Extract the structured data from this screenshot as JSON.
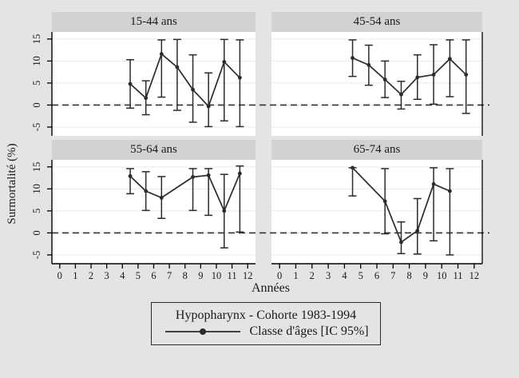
{
  "figure": {
    "ylabel": "Surmortalité (%)",
    "xlabel": "Années",
    "colors": {
      "background": "#e4e4e4",
      "panel_header": "#d2d2d2",
      "plot_bg": "#ffffff",
      "grid": "#eaeaea",
      "line": "#2b2b2b",
      "axis": "#000000",
      "zero_line": "#333333",
      "text": "#1a1a1a"
    }
  },
  "chart_data": {
    "type": "line",
    "layout": "2x2-small-multiples",
    "xlabel": "Années",
    "ylabel": "Surmortalité (%)",
    "x_ticks": [
      0,
      1,
      2,
      3,
      4,
      5,
      6,
      7,
      8,
      9,
      10,
      11,
      12
    ],
    "y_ticks": [
      -5,
      0,
      5,
      10,
      15
    ],
    "x_range": [
      -0.5,
      12.5
    ],
    "y_range": [
      -7,
      16.6
    ],
    "zero_line": true,
    "error_bars": "IC 95%",
    "panels": [
      {
        "title": "15-44 ans",
        "x": [
          4.5,
          5.5,
          6.5,
          7.5,
          8.5,
          9.5,
          10.5,
          11.5
        ],
        "y": [
          4.8,
          1.6,
          11.6,
          8.6,
          3.5,
          -0.3,
          9.8,
          6.2
        ],
        "lo": [
          -0.7,
          -2.2,
          1.8,
          -1.2,
          -3.9,
          -4.9,
          -3.6,
          -4.9
        ],
        "hi": [
          10.3,
          5.5,
          14.8,
          14.9,
          11.4,
          7.3,
          14.9,
          14.8
        ]
      },
      {
        "title": "45-54 ans",
        "x": [
          4.5,
          5.5,
          6.5,
          7.5,
          8.5,
          9.5,
          10.5,
          11.5
        ],
        "y": [
          10.7,
          9.1,
          5.8,
          2.4,
          6.3,
          6.9,
          10.5,
          6.9
        ],
        "lo": [
          6.5,
          4.5,
          1.7,
          -0.9,
          1.3,
          0.2,
          1.9,
          -1.9
        ],
        "hi": [
          14.8,
          13.6,
          10.0,
          5.4,
          11.4,
          13.7,
          14.8,
          14.8
        ]
      },
      {
        "title": "55-64 ans",
        "x": [
          4.5,
          5.5,
          6.5,
          8.5,
          9.5,
          10.5,
          11.5
        ],
        "y": [
          12.9,
          9.5,
          8.0,
          12.7,
          13.1,
          5.0,
          13.5
        ],
        "lo": [
          8.9,
          5.1,
          3.3,
          5.1,
          4.0,
          -3.4,
          0.2
        ],
        "hi": [
          14.6,
          13.9,
          12.8,
          14.6,
          14.6,
          13.3,
          15.2
        ]
      },
      {
        "title": "65-74 ans",
        "x": [
          4.5,
          6.5,
          7.5,
          8.5,
          9.5,
          10.5
        ],
        "y": [
          14.8,
          7.2,
          -2.1,
          0.5,
          11.1,
          9.5
        ],
        "lo": [
          8.4,
          -0.2,
          -4.7,
          -4.8,
          -1.8,
          -5.0
        ],
        "hi": [
          14.8,
          14.6,
          2.5,
          7.8,
          14.8,
          14.6
        ]
      }
    ]
  },
  "legend": {
    "title": "Hypopharynx - Cohorte 1983-1994",
    "entry_label": "Classe d'âges [IC 95%]"
  }
}
